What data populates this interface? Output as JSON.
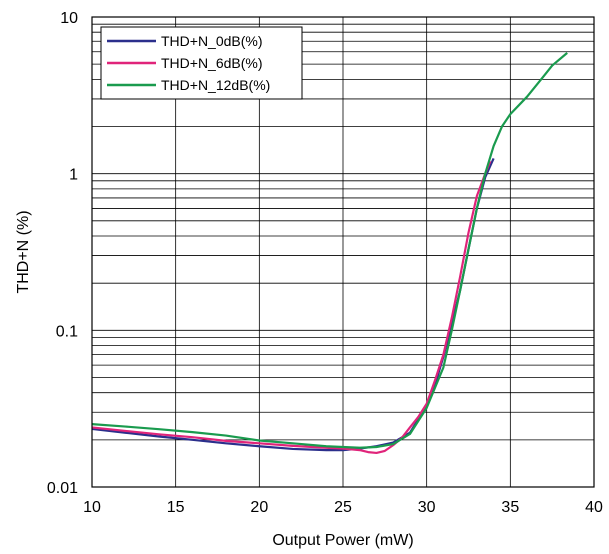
{
  "chart_data": {
    "type": "line",
    "title": "",
    "xlabel": "Output Power (mW)",
    "ylabel": "THD+N (%)",
    "xlim": [
      10,
      40
    ],
    "ylim": [
      0.01,
      10
    ],
    "yscale": "log",
    "grid": true,
    "legend_position": "top-left",
    "x_ticks": [
      "10",
      "15",
      "20",
      "25",
      "30",
      "35",
      "40"
    ],
    "y_ticks": [
      "0.01",
      "0.1",
      "1",
      "10"
    ],
    "series": [
      {
        "name": "THD+N_0dB(%)",
        "color": "#2b2f8c",
        "points": [
          [
            10,
            0.0235
          ],
          [
            12,
            0.0222
          ],
          [
            14,
            0.021
          ],
          [
            16,
            0.02
          ],
          [
            18,
            0.019
          ],
          [
            20,
            0.0182
          ],
          [
            22,
            0.0175
          ],
          [
            24,
            0.0172
          ],
          [
            25,
            0.0172
          ],
          [
            26,
            0.0176
          ],
          [
            27,
            0.0182
          ],
          [
            28,
            0.0192
          ],
          [
            29,
            0.0222
          ],
          [
            30,
            0.033
          ],
          [
            30.5,
            0.045
          ],
          [
            31,
            0.068
          ],
          [
            31.5,
            0.11
          ],
          [
            32,
            0.18
          ],
          [
            32.5,
            0.33
          ],
          [
            33,
            0.6
          ],
          [
            33.5,
            0.95
          ],
          [
            34,
            1.25
          ]
        ]
      },
      {
        "name": "THD+N_6dB(%)",
        "color": "#e0247a",
        "points": [
          [
            10,
            0.024
          ],
          [
            12,
            0.0228
          ],
          [
            14,
            0.0217
          ],
          [
            16,
            0.0208
          ],
          [
            18,
            0.0197
          ],
          [
            20,
            0.019
          ],
          [
            22,
            0.0183
          ],
          [
            24,
            0.0178
          ],
          [
            25,
            0.0176
          ],
          [
            26,
            0.0172
          ],
          [
            26.5,
            0.0167
          ],
          [
            27,
            0.0165
          ],
          [
            27.5,
            0.017
          ],
          [
            28,
            0.0185
          ],
          [
            28.5,
            0.0205
          ],
          [
            29,
            0.024
          ],
          [
            29.5,
            0.028
          ],
          [
            30,
            0.034
          ],
          [
            30.5,
            0.048
          ],
          [
            31,
            0.07
          ],
          [
            31.5,
            0.12
          ],
          [
            32,
            0.22
          ],
          [
            32.5,
            0.42
          ],
          [
            33,
            0.72
          ],
          [
            33.5,
            1.0
          ],
          [
            33.8,
            1.2
          ]
        ]
      },
      {
        "name": "THD+N_12dB(%)",
        "color": "#1a9b4e",
        "points": [
          [
            10,
            0.0252
          ],
          [
            12,
            0.0243
          ],
          [
            14,
            0.0234
          ],
          [
            16,
            0.0224
          ],
          [
            18,
            0.0213
          ],
          [
            20,
            0.0198
          ],
          [
            22,
            0.019
          ],
          [
            24,
            0.0182
          ],
          [
            26,
            0.0178
          ],
          [
            27,
            0.018
          ],
          [
            28,
            0.0188
          ],
          [
            29,
            0.0218
          ],
          [
            30,
            0.032
          ],
          [
            31,
            0.058
          ],
          [
            31.5,
            0.1
          ],
          [
            32,
            0.18
          ],
          [
            32.5,
            0.33
          ],
          [
            33,
            0.6
          ],
          [
            33.5,
            1.0
          ],
          [
            34,
            1.5
          ],
          [
            34.5,
            2.0
          ],
          [
            35,
            2.4
          ],
          [
            36,
            3.1
          ],
          [
            37,
            4.2
          ],
          [
            37.5,
            4.9
          ],
          [
            38.4,
            5.9
          ]
        ]
      }
    ]
  }
}
